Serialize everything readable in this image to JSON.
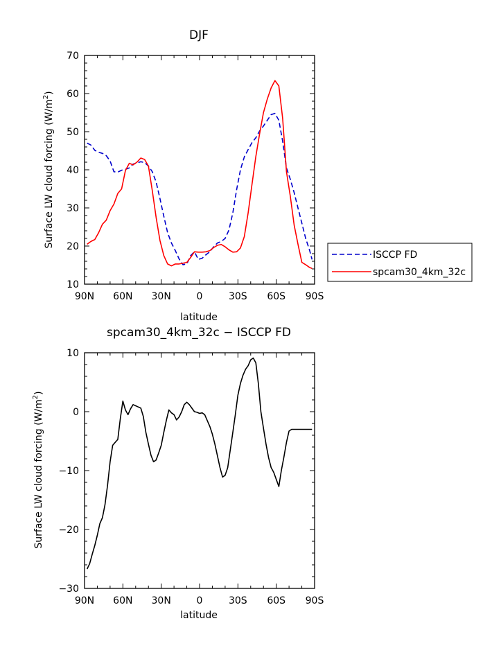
{
  "chart_data": [
    {
      "type": "line",
      "title": "DJF",
      "xlabel": "latitude",
      "ylabel": "Surface LW cloud forcing (W/m",
      "ylabel_sup": "2",
      "ylabel_end": ")",
      "xlim": [
        -90,
        90
      ],
      "ylim": [
        10,
        70
      ],
      "x_ticks": [
        -90,
        -60,
        -30,
        0,
        30,
        60,
        90
      ],
      "x_tick_labels": [
        "90N",
        "60N",
        "30N",
        "0",
        "30S",
        "60S",
        "90S"
      ],
      "y_ticks": [
        10,
        20,
        30,
        40,
        50,
        60,
        70
      ],
      "y_tick_labels": [
        "10",
        "20",
        "30",
        "40",
        "50",
        "60",
        "70"
      ],
      "legend_position": "right",
      "series": [
        {
          "name": "ISCCP FD",
          "color": "#0000cc",
          "dash": true,
          "x": [
            -88,
            -85,
            -82,
            -79,
            -76,
            -73,
            -70,
            -67,
            -64,
            -61,
            -58,
            -55,
            -52,
            -49,
            -46,
            -43,
            -40,
            -37,
            -34,
            -31,
            -28,
            -25,
            -22,
            -19,
            -16,
            -13,
            -10,
            -7,
            -4,
            -1,
            2,
            5,
            8,
            11,
            14,
            17,
            20,
            23,
            26,
            29,
            32,
            35,
            38,
            41,
            44,
            47,
            50,
            53,
            56,
            59,
            62,
            65,
            68,
            71,
            74,
            77,
            80,
            83,
            86,
            88
          ],
          "y": [
            47,
            46.5,
            45.1,
            44.6,
            44.3,
            43.7,
            42.3,
            39.5,
            39.4,
            39.9,
            40.1,
            40.5,
            41.5,
            41.8,
            42.1,
            41.9,
            41,
            39.5,
            36.8,
            32.5,
            27.8,
            23.5,
            20.8,
            18.8,
            16.6,
            15.1,
            15.3,
            17.5,
            18.5,
            16.5,
            16.8,
            17.7,
            18.5,
            19.8,
            20.8,
            21.2,
            22,
            24.2,
            28.7,
            34.8,
            40,
            43.4,
            45.3,
            47.1,
            48.4,
            50.2,
            51.5,
            53,
            54.5,
            54.8,
            53,
            47.5,
            40.5,
            37.5,
            34,
            30,
            26,
            22,
            19,
            16.5
          ]
        },
        {
          "name": "spcam30_4km_32c",
          "color": "#ff0000",
          "dash": false,
          "x": [
            -88,
            -85,
            -82,
            -79,
            -76,
            -73,
            -70,
            -67,
            -64,
            -61,
            -58,
            -55,
            -52,
            -49,
            -46,
            -43,
            -40,
            -37,
            -34,
            -31,
            -28,
            -25,
            -22,
            -19,
            -16,
            -13,
            -10,
            -7,
            -4,
            -1,
            2,
            5,
            8,
            11,
            14,
            17,
            20,
            23,
            26,
            29,
            32,
            35,
            38,
            41,
            44,
            47,
            50,
            53,
            56,
            59,
            62,
            65,
            68,
            71,
            74,
            77,
            80,
            83,
            86,
            88
          ],
          "y": [
            20.5,
            21.2,
            21.7,
            23.5,
            25.7,
            26.8,
            29.3,
            31,
            33.8,
            35,
            39.8,
            41.7,
            41.3,
            42,
            43.1,
            42.7,
            41,
            34.5,
            27.5,
            21.5,
            17.5,
            15.3,
            14.8,
            15.3,
            15.3,
            15.5,
            15.7,
            17,
            18.5,
            18.4,
            18.4,
            18.5,
            18.8,
            19.6,
            20.2,
            20.4,
            19.8,
            19,
            18.4,
            18.5,
            19.5,
            22.5,
            28.7,
            36.1,
            43.5,
            49.5,
            55,
            58.6,
            61.5,
            63.4,
            62,
            53.5,
            39.5,
            33,
            25.5,
            20.5,
            15.7,
            15.1,
            14.4,
            14.1
          ]
        }
      ]
    },
    {
      "type": "line",
      "title": "spcam30_4km_32c − ISCCP FD",
      "xlabel": "latitude",
      "ylabel": "Surface LW cloud forcing (W/m",
      "ylabel_sup": "2",
      "ylabel_end": ")",
      "xlim": [
        -90,
        90
      ],
      "ylim": [
        -30,
        10
      ],
      "x_ticks": [
        -90,
        -60,
        -30,
        0,
        30,
        60,
        90
      ],
      "x_tick_labels": [
        "90N",
        "60N",
        "30N",
        "0",
        "30S",
        "60S",
        "90S"
      ],
      "y_ticks": [
        -30,
        -20,
        -10,
        0,
        10
      ],
      "y_tick_labels": [
        "−30",
        "−20",
        "−10",
        "0",
        "10"
      ],
      "series": [
        {
          "color": "#000000",
          "dash": false,
          "x": [
            -88,
            -86,
            -84,
            -82,
            -80,
            -78,
            -76,
            -74,
            -72,
            -70,
            -68,
            -66,
            -64,
            -62,
            -60,
            -58,
            -56,
            -54,
            -52,
            -50,
            -48,
            -46,
            -44,
            -42,
            -40,
            -38,
            -36,
            -34,
            -32,
            -30,
            -28,
            -26,
            -24,
            -22,
            -20,
            -18,
            -16,
            -14,
            -12,
            -10,
            -8,
            -6,
            -4,
            -2,
            0,
            2,
            4,
            6,
            8,
            10,
            12,
            14,
            16,
            18,
            20,
            22,
            24,
            26,
            28,
            30,
            32,
            34,
            36,
            38,
            40,
            42,
            44,
            46,
            48,
            50,
            52,
            54,
            56,
            58,
            60,
            62,
            64,
            66,
            68,
            70,
            72,
            74,
            76,
            78,
            80,
            82,
            84,
            86,
            88
          ],
          "y": [
            -26.7,
            -25.8,
            -24.2,
            -22.7,
            -21,
            -19,
            -18,
            -15.8,
            -12.5,
            -8.5,
            -5.7,
            -5.2,
            -4.7,
            -1.2,
            1.8,
            0.3,
            -0.5,
            0.5,
            1.2,
            1,
            0.8,
            0.6,
            -0.8,
            -3.5,
            -5.5,
            -7.4,
            -8.5,
            -8.2,
            -7,
            -5.7,
            -3.5,
            -1.5,
            0.3,
            -0.2,
            -0.5,
            -1.4,
            -0.9,
            0,
            1.2,
            1.6,
            1.2,
            0.6,
            0,
            -0.1,
            -0.3,
            -0.2,
            -0.5,
            -1.5,
            -2.5,
            -3.8,
            -5.5,
            -7.5,
            -9.5,
            -11.1,
            -10.8,
            -9.5,
            -6.5,
            -3.5,
            -0.5,
            2.8,
            4.8,
            6.2,
            7.2,
            7.8,
            8.8,
            9.1,
            8.3,
            4.8,
            0,
            -2.8,
            -5.5,
            -7.8,
            -9.5,
            -10.3,
            -11.5,
            -12.7,
            -10,
            -7.7,
            -5.2,
            -3.3,
            -3,
            -3,
            -3,
            -3,
            -3,
            -3,
            -3,
            -3,
            -3
          ]
        }
      ]
    }
  ]
}
